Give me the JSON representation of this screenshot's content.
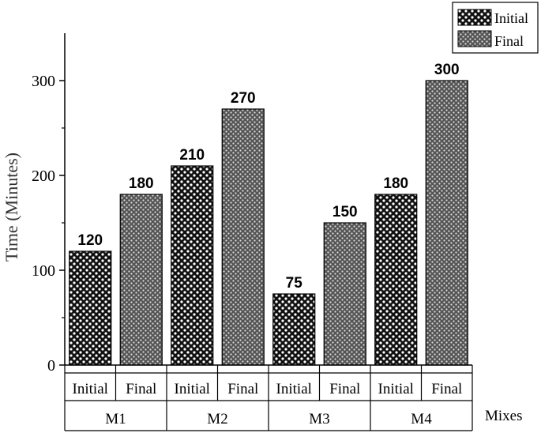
{
  "chart_data": {
    "type": "bar",
    "ylabel": "Time (Minutes)",
    "xlabel": "Mixes",
    "ylim": [
      0,
      350
    ],
    "yticks": [
      0,
      100,
      200,
      300
    ],
    "groups": [
      "M1",
      "M2",
      "M3",
      "M4"
    ],
    "series": [
      {
        "name": "Initial",
        "values": [
          120,
          210,
          75,
          180
        ]
      },
      {
        "name": "Final",
        "values": [
          180,
          270,
          150,
          300
        ]
      }
    ],
    "legend": {
      "position": "top-right",
      "entries": [
        "Initial",
        "Final"
      ]
    },
    "grid": false
  }
}
